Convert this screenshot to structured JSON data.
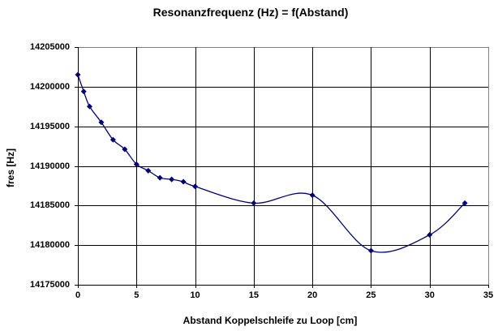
{
  "chart_data": {
    "type": "line",
    "title": "Resonanzfrequenz (Hz) = f(Abstand)",
    "xlabel": "Abstand Koppelschleife zu Loop [cm]",
    "ylabel": "fres [Hz]",
    "xlim": [
      0,
      35
    ],
    "ylim": [
      14175000,
      14205000
    ],
    "x_ticks": [
      0,
      5,
      10,
      15,
      20,
      25,
      30,
      35
    ],
    "y_ticks": [
      14175000,
      14180000,
      14185000,
      14190000,
      14195000,
      14200000,
      14205000
    ],
    "grid": true,
    "legend": "none",
    "smooth": true,
    "marker": "diamond",
    "style": {
      "line_color": "#000080",
      "marker_color": "#000080",
      "grid_color": "#000000",
      "axis_color": "#000000",
      "plot_border_color": "#808080",
      "background": "#ffffff"
    },
    "series": [
      {
        "name": "fres",
        "x": [
          0,
          0.5,
          1,
          2,
          3,
          4,
          5,
          6,
          7,
          8,
          9,
          10,
          15,
          20,
          25,
          30,
          33
        ],
        "y": [
          14201500,
          14199400,
          14197500,
          14195500,
          14193300,
          14192100,
          14190200,
          14189400,
          14188500,
          14188300,
          14188000,
          14187400,
          14185300,
          14186300,
          14179300,
          14181300,
          14185300
        ]
      }
    ]
  }
}
